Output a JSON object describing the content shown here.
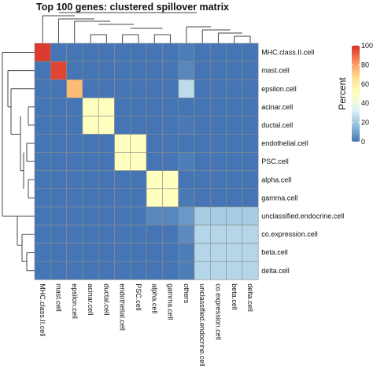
{
  "chart_data": {
    "type": "heatmap",
    "title": "Top 100 genes: clustered spillover matrix",
    "rows": [
      "MHC.class.II.cell",
      "mast.cell",
      "epsilon.cell",
      "acinar.cell",
      "ductal.cell",
      "endothelial.cell",
      "PSC.cell",
      "alpha.cell",
      "gamma.cell",
      "unclassified.endocrine.cell",
      "co.expression.cell",
      "beta.cell",
      "delta.cell"
    ],
    "columns": [
      "MHC.class.II.cell",
      "mast.cell",
      "epsilon.cell",
      "acinar.cell",
      "ductal.cell",
      "endothelial.cell",
      "PSC.cell",
      "alpha.cell",
      "gamma.cell",
      "others",
      "unclassified.endocrine.cell",
      "co.expression.cell",
      "beta.cell",
      "delta.cell"
    ],
    "values": [
      [
        98,
        0,
        0,
        0,
        0,
        0,
        0,
        0,
        0,
        2,
        0,
        0,
        0,
        0
      ],
      [
        0,
        96,
        0,
        0,
        0,
        0,
        0,
        0,
        0,
        4,
        0,
        0,
        0,
        0
      ],
      [
        0,
        0,
        74,
        0,
        0,
        0,
        0,
        0,
        0,
        26,
        0,
        0,
        0,
        0
      ],
      [
        0,
        0,
        0,
        50,
        50,
        0,
        0,
        0,
        0,
        0,
        0,
        0,
        0,
        0
      ],
      [
        0,
        0,
        0,
        50,
        50,
        0,
        0,
        0,
        0,
        1,
        0,
        0,
        0,
        0
      ],
      [
        0,
        0,
        0,
        0,
        0,
        50,
        50,
        0,
        0,
        0,
        0,
        0,
        0,
        0
      ],
      [
        0,
        0,
        0,
        0,
        0,
        50,
        50,
        0,
        0,
        2,
        0,
        0,
        0,
        0
      ],
      [
        0,
        0,
        0,
        0,
        0,
        0,
        0,
        50,
        50,
        0,
        0,
        0,
        0,
        0
      ],
      [
        0,
        0,
        0,
        0,
        0,
        0,
        0,
        50,
        50,
        1,
        0,
        0,
        0,
        0
      ],
      [
        0,
        0,
        0,
        0,
        0,
        0,
        0,
        4,
        4,
        8,
        21,
        21,
        21,
        21
      ],
      [
        0,
        0,
        0,
        0,
        0,
        0,
        0,
        0,
        0,
        5,
        24,
        24,
        24,
        24
      ],
      [
        0,
        0,
        0,
        0,
        0,
        0,
        0,
        0,
        0,
        2,
        24,
        24,
        24,
        24
      ],
      [
        0,
        0,
        0,
        0,
        0,
        0,
        0,
        0,
        0,
        2,
        24,
        24,
        24,
        24
      ]
    ],
    "legend": {
      "title": "Percent",
      "ticks": [
        0,
        20,
        40,
        60,
        80,
        100
      ],
      "placement": "right",
      "colors": [
        "#4575b4",
        "#91bfdb",
        "#e0f3f8",
        "#ffffbf",
        "#fee090",
        "#fc8d59",
        "#d73027"
      ]
    },
    "dendrogram_rows": true,
    "dendrogram_columns": true,
    "grid": true
  }
}
